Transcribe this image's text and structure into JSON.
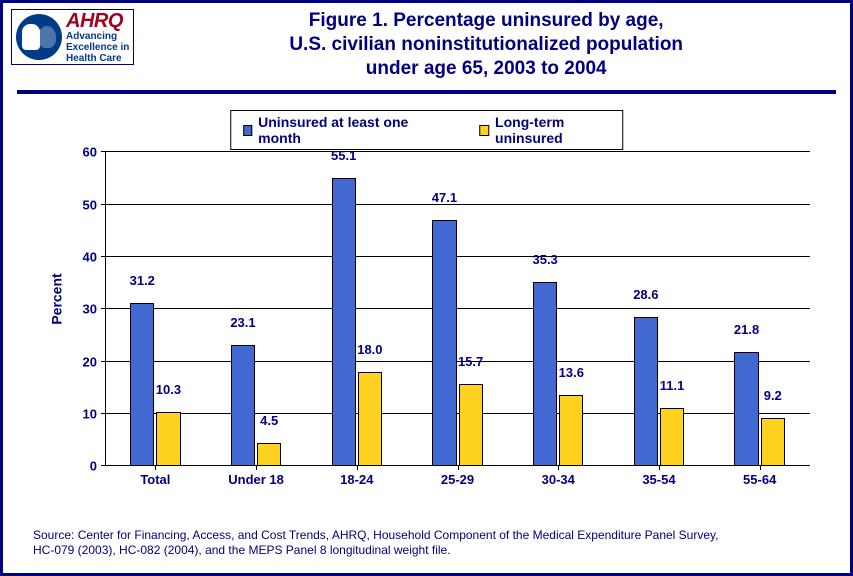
{
  "logo": {
    "ahrq_name": "AHRQ",
    "ahrq_tag1": "Advancing",
    "ahrq_tag2": "Excellence in",
    "ahrq_tag3": "Health Care"
  },
  "title": {
    "line1": "Figure 1. Percentage uninsured by age,",
    "line2": "U.S. civilian noninstitutionalized population",
    "line3": "under age 65, 2003 to 2004"
  },
  "chart": {
    "type": "bar",
    "ylabel": "Percent",
    "ylim": [
      0,
      60
    ],
    "ytick_step": 10,
    "yticks": [
      "0",
      "10",
      "20",
      "30",
      "40",
      "50",
      "60"
    ],
    "series": [
      {
        "name": "Uninsured at least one month",
        "color": "#4169d1"
      },
      {
        "name": "Long-term uninsured",
        "color": "#ffd21f"
      }
    ],
    "categories": [
      "Total",
      "Under 18",
      "18-24",
      "25-29",
      "30-34",
      "35-54",
      "55-64"
    ],
    "values_s1": [
      31.2,
      23.1,
      55.1,
      47.1,
      35.3,
      28.6,
      21.8
    ],
    "values_s2": [
      10.3,
      4.5,
      18.0,
      15.7,
      13.6,
      11.1,
      9.2
    ],
    "labels_s1": [
      "31.2",
      "23.1",
      "55.1",
      "47.1",
      "35.3",
      "28.6",
      "21.8"
    ],
    "labels_s2": [
      "10.3",
      "4.5",
      "18.0",
      "15.7",
      "13.6",
      "11.1",
      "9.2"
    ],
    "bar_border": "#000000",
    "grid_color": "#000000",
    "background_color": "#ffffff",
    "bar_width_pct": 24,
    "bar_gap_pct": 2,
    "title_color": "#000080",
    "label_fontsize": 13
  },
  "source": {
    "line1": "Source: Center for Financing, Access, and Cost Trends, AHRQ, Household Component of the Medical Expenditure Panel Survey,",
    "line2": "HC-079 (2003), HC-082 (2004), and the MEPS Panel 8 longitudinal weight file."
  }
}
